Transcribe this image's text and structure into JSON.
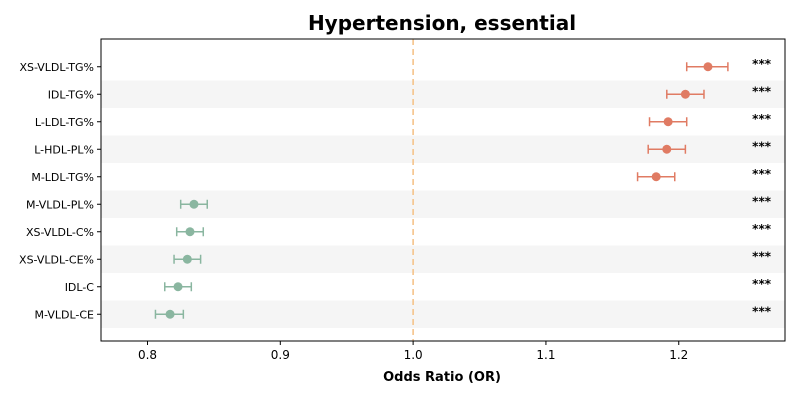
{
  "chart_data": {
    "type": "forest",
    "title": "Hypertension, essential",
    "xlabel": "Odds Ratio (OR)",
    "xlim": [
      0.765,
      1.28
    ],
    "xticks": [
      0.8,
      0.9,
      1.0,
      1.1,
      1.2
    ],
    "xtick_labels": [
      "0.8",
      "0.9",
      "1.0",
      "1.1",
      "1.2"
    ],
    "reference_line": 1.0,
    "colors": {
      "positive": "#e07b63",
      "negative": "#8ab6a0",
      "reference": "#f5c38a",
      "band": "#f5f5f5"
    },
    "rows": [
      {
        "label": "XS-VLDL-TG%",
        "or": 1.222,
        "lo": 1.206,
        "hi": 1.237,
        "sig": "***"
      },
      {
        "label": "IDL-TG%",
        "or": 1.205,
        "lo": 1.191,
        "hi": 1.219,
        "sig": "***"
      },
      {
        "label": "L-LDL-TG%",
        "or": 1.192,
        "lo": 1.178,
        "hi": 1.206,
        "sig": "***"
      },
      {
        "label": "L-HDL-PL%",
        "or": 1.191,
        "lo": 1.177,
        "hi": 1.205,
        "sig": "***"
      },
      {
        "label": "M-LDL-TG%",
        "or": 1.183,
        "lo": 1.169,
        "hi": 1.197,
        "sig": "***"
      },
      {
        "label": "M-VLDL-PL%",
        "or": 0.835,
        "lo": 0.825,
        "hi": 0.845,
        "sig": "***"
      },
      {
        "label": "XS-VLDL-C%",
        "or": 0.832,
        "lo": 0.822,
        "hi": 0.842,
        "sig": "***"
      },
      {
        "label": "XS-VLDL-CE%",
        "or": 0.83,
        "lo": 0.82,
        "hi": 0.84,
        "sig": "***"
      },
      {
        "label": "IDL-C",
        "or": 0.823,
        "lo": 0.813,
        "hi": 0.833,
        "sig": "***"
      },
      {
        "label": "M-VLDL-CE",
        "or": 0.817,
        "lo": 0.806,
        "hi": 0.827,
        "sig": "***"
      }
    ]
  }
}
